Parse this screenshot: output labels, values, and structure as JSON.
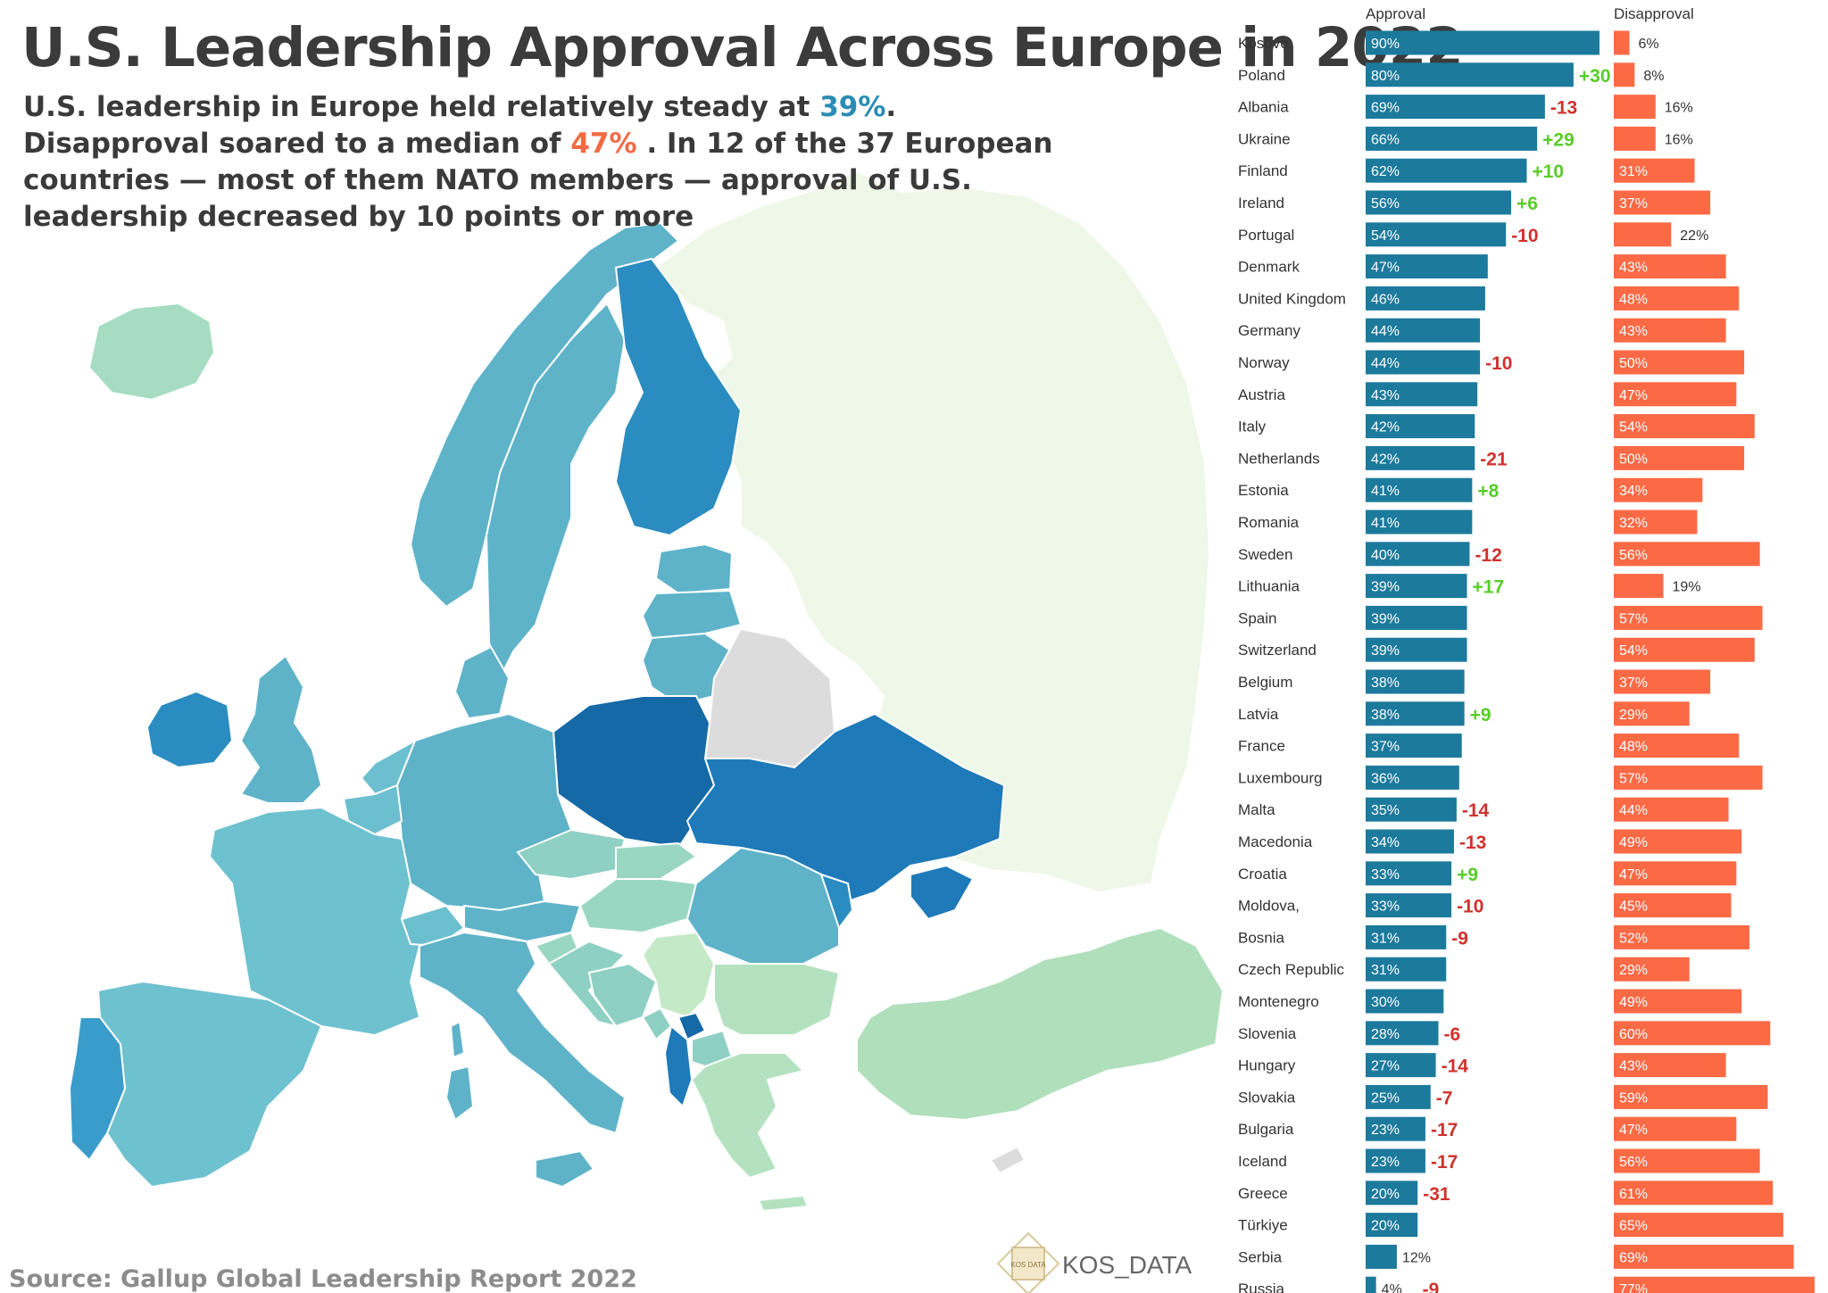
{
  "header": {
    "title": "U.S. Leadership Approval Across Europe in 2022",
    "subtitle_1": "U.S. leadership in Europe held relatively steady at ",
    "subtitle_approval": "39%",
    "subtitle_2": ". Disapproval soared to a median of ",
    "subtitle_disapproval": "47%",
    "subtitle_3": " . In 12 of the 37 European countries — most of them NATO members — approval of U.S. leadership decreased by 10 points or more"
  },
  "footer": {
    "source": "Source: Gallup Global Leadership Report 2022",
    "brand": "KOS_DATA",
    "brand_logo_text": "KOS DATA"
  },
  "colors": {
    "approval_bar": "#1c7a9c",
    "disapproval_bar": "#fb6a45",
    "positive_change": "#58cc28",
    "negative_change": "#d0312d",
    "map_background": "#eef7e8",
    "map_no_data": "#dcdcdc",
    "map_scale_low": "#b4e2c0",
    "map_scale_high": "#1569a6"
  },
  "chart_data": {
    "type": "bar",
    "orientation": "horizontal",
    "xlim": [
      0,
      100
    ],
    "categories": [
      "Kosovo",
      "Poland",
      "Albania",
      "Ukraine",
      "Finland",
      "Ireland",
      "Portugal",
      "Denmark",
      "United Kingdom",
      "Germany",
      "Norway",
      "Austria",
      "Italy",
      "Netherlands",
      "Estonia",
      "Romania",
      "Sweden",
      "Lithuania",
      "Spain",
      "Switzerland",
      "Belgium",
      "Latvia",
      "France",
      "Luxembourg",
      "Malta",
      "Macedonia",
      "Croatia",
      "Moldova,",
      "Bosnia",
      "Czech Republic",
      "Montenegro",
      "Slovenia",
      "Hungary",
      "Slovakia",
      "Bulgaria",
      "Iceland",
      "Greece",
      "Türkiye",
      "Serbia",
      "Russia"
    ],
    "series": [
      {
        "name": "Approval",
        "values": [
          90,
          80,
          69,
          66,
          62,
          56,
          54,
          47,
          46,
          44,
          44,
          43,
          42,
          42,
          41,
          41,
          40,
          39,
          39,
          39,
          38,
          38,
          37,
          36,
          35,
          34,
          33,
          33,
          31,
          31,
          30,
          28,
          27,
          25,
          23,
          23,
          20,
          20,
          12,
          4
        ],
        "labels": [
          "90%",
          "80%",
          "69%",
          "66%",
          "62%",
          "56%",
          "54%",
          "47%",
          "46%",
          "44%",
          "44%",
          "43%",
          "42%",
          "42%",
          "41%",
          "41%",
          "40%",
          "39%",
          "39%",
          "39%",
          "38%",
          "38%",
          "37%",
          "36%",
          "35%",
          "34%",
          "33%",
          "33%",
          "31%",
          "31%",
          "30%",
          "28%",
          "27%",
          "25%",
          "23%",
          "23%",
          "20%",
          "20%",
          "12%",
          "4%"
        ],
        "change_labels": [
          "",
          "+30",
          "-13",
          "+29",
          "+10",
          "+6",
          "-10",
          "",
          "",
          "",
          "-10",
          "",
          "",
          "-21",
          "+8",
          "",
          "-12",
          "+17",
          "",
          "",
          "",
          "+9",
          "",
          "",
          "-14",
          "-13",
          "+9",
          "-10",
          "-9",
          "",
          "",
          "-6",
          "-14",
          "-7",
          "-17",
          "-17",
          "-31",
          "",
          "",
          "-9"
        ]
      },
      {
        "name": "Disapproval",
        "values": [
          6,
          8,
          16,
          16,
          31,
          37,
          22,
          43,
          48,
          43,
          50,
          47,
          54,
          50,
          34,
          32,
          56,
          19,
          57,
          54,
          37,
          29,
          48,
          57,
          44,
          49,
          47,
          45,
          52,
          29,
          49,
          60,
          43,
          59,
          47,
          56,
          61,
          65,
          69,
          77
        ],
        "labels": [
          "6%",
          "8%",
          "16%",
          "16%",
          "31%",
          "37%",
          "22%",
          "43%",
          "48%",
          "43%",
          "50%",
          "47%",
          "54%",
          "50%",
          "34%",
          "32%",
          "56%",
          "19%",
          "57%",
          "54%",
          "37%",
          "29%",
          "48%",
          "57%",
          "44%",
          "49%",
          "47%",
          "45%",
          "52%",
          "29%",
          "49%",
          "60%",
          "43%",
          "59%",
          "47%",
          "56%",
          "61%",
          "65%",
          "69%",
          "77%"
        ]
      }
    ]
  }
}
